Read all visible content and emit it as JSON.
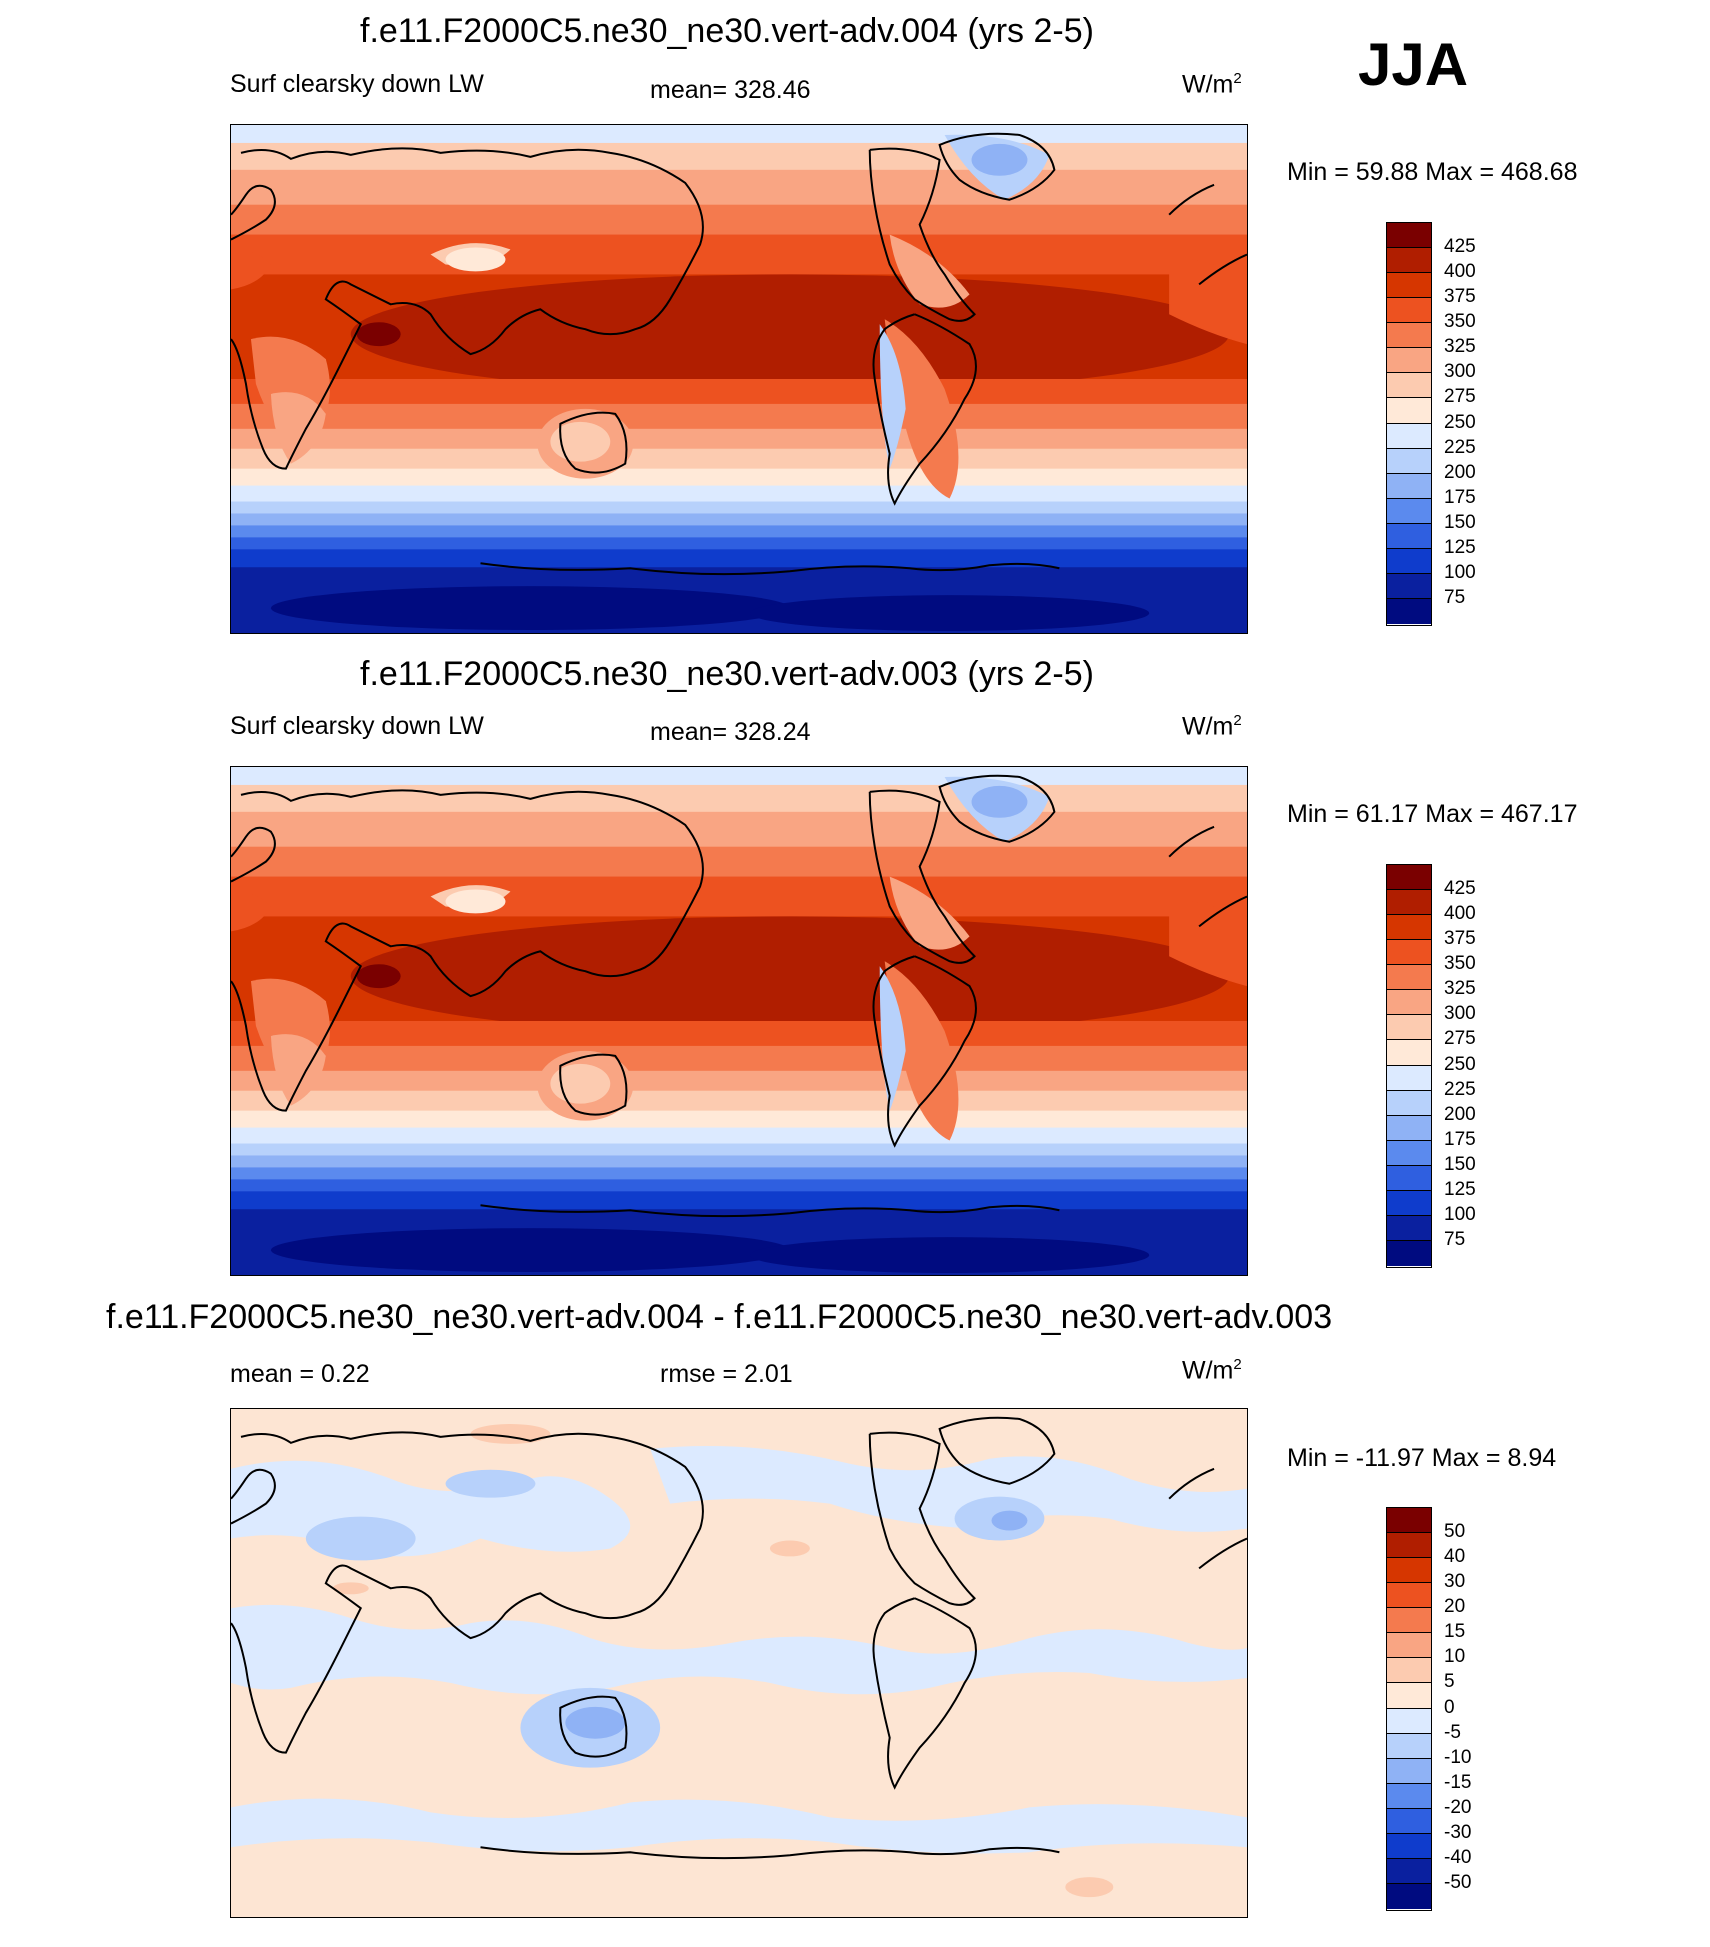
{
  "season": "JJA",
  "colorbar_levels": [
    "425",
    "400",
    "375",
    "350",
    "325",
    "300",
    "275",
    "250",
    "225",
    "200",
    "175",
    "150",
    "125",
    "100",
    "75"
  ],
  "colorbar_colors": [
    "#7a0000",
    "#b01e00",
    "#d63600",
    "#ed5220",
    "#f47a4e",
    "#f9a583",
    "#fccbb0",
    "#ffe9d8",
    "#dceaff",
    "#b7d1fb",
    "#8fb2f5",
    "#5b8aee",
    "#2f5fe0",
    "#0f3ccc",
    "#0a209f",
    "#000b80"
  ],
  "diff_colorbar_levels": [
    "50",
    "40",
    "30",
    "20",
    "15",
    "10",
    "5",
    "0",
    "-5",
    "-10",
    "-15",
    "-20",
    "-30",
    "-40",
    "-50"
  ],
  "diff_colorbar_colors": [
    "#7a0000",
    "#b01e00",
    "#d63600",
    "#ed5220",
    "#f47a4e",
    "#f9a583",
    "#fccbb0",
    "#ffe9d8",
    "#dceaff",
    "#b7d1fb",
    "#8fb2f5",
    "#5b8aee",
    "#2f5fe0",
    "#0f3ccc",
    "#0a209f",
    "#000b80"
  ],
  "panels": [
    {
      "title": "f.e11.F2000C5.ne30_ne30.vert-adv.004 (yrs 2-5)",
      "left_label": "Surf clearsky down LW",
      "center_label": "mean= 328.46",
      "units": "W/m",
      "units_sup": "2",
      "minmax": "Min =  59.88 Max = 468.68"
    },
    {
      "title": "f.e11.F2000C5.ne30_ne30.vert-adv.003 (yrs 2-5)",
      "left_label": "Surf clearsky down LW",
      "center_label": "mean= 328.24",
      "units": "W/m",
      "units_sup": "2",
      "minmax": "Min =  61.17 Max = 467.17"
    },
    {
      "title": "f.e11.F2000C5.ne30_ne30.vert-adv.004 - f.e11.F2000C5.ne30_ne30.vert-adv.003",
      "left_label": "mean =   0.22",
      "center_label": "rmse =   2.01",
      "units": "W/m",
      "units_sup": "2",
      "minmax": "Min = -11.97 Max =   8.94"
    }
  ]
}
